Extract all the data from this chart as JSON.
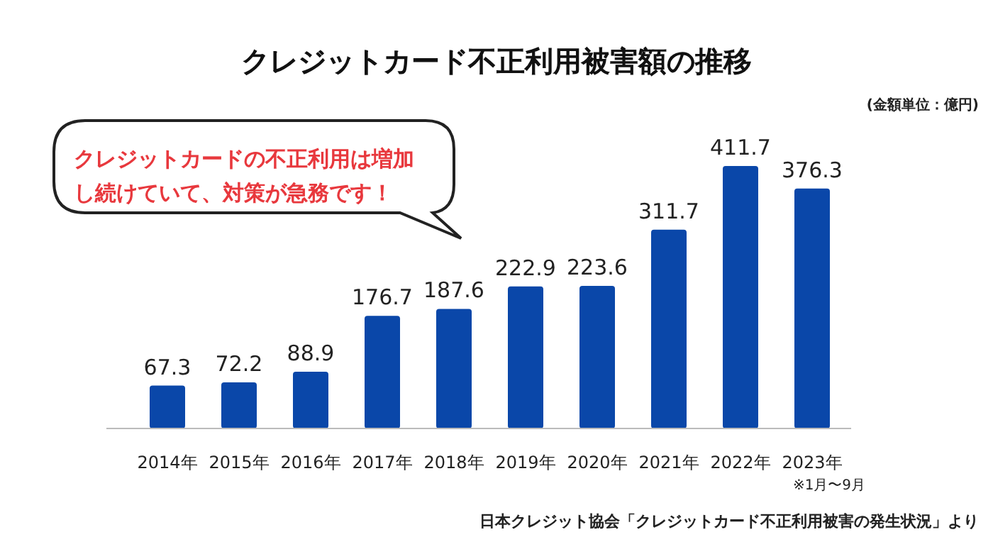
{
  "chart_data": {
    "type": "bar",
    "title": "クレジットカード不正利用被害額の推移",
    "categories": [
      "2014年",
      "2015年",
      "2016年",
      "2017年",
      "2018年",
      "2019年",
      "2020年",
      "2021年",
      "2022年",
      "2023年"
    ],
    "values": [
      67.3,
      72.2,
      88.9,
      176.7,
      187.6,
      222.9,
      223.6,
      311.7,
      411.7,
      376.3
    ],
    "color": "#0a47a9",
    "data_labels": true,
    "annotations": [
      "クレジットカードの不正利用は増加し続けていて、対策が急務です！",
      "(金額単位：億円)",
      "※1月〜9月",
      "日本クレジット協会「クレジットカード不正利用被害の発生状況」より"
    ]
  }
}
